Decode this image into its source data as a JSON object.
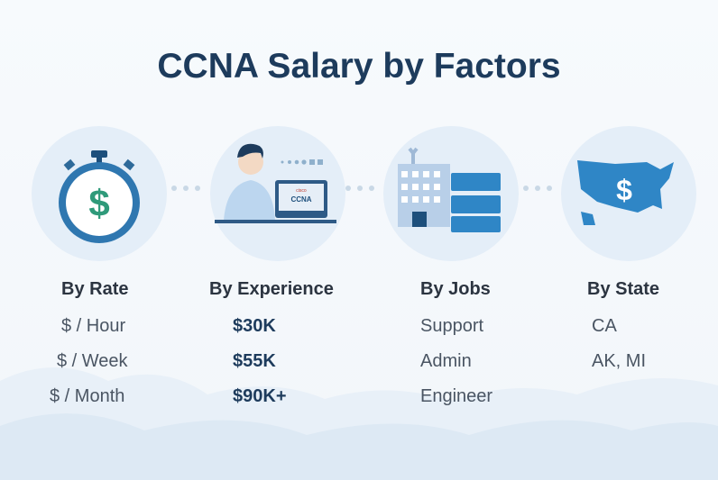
{
  "title": "CCNA Salary by Factors",
  "laptop_logo": {
    "top": "cisco",
    "bottom": "CCNA"
  },
  "columns": [
    {
      "heading": "By Rate",
      "icon": "stopwatch-dollar-icon",
      "items": [
        "$ / Hour",
        "$ / Week",
        "$ / Month"
      ]
    },
    {
      "heading": "By Experience",
      "icon": "person-laptop-icon",
      "items": [
        "$30K",
        "$55K",
        "$90K+"
      ]
    },
    {
      "heading": "By Jobs",
      "icon": "building-server-icon",
      "items": [
        "Support",
        "Admin",
        "Engineer"
      ]
    },
    {
      "heading": "By State",
      "icon": "usa-map-dollar-icon",
      "items": [
        "CA",
        "AK, MI"
      ]
    }
  ],
  "colors": {
    "title": "#1d3b5c",
    "accent": "#2f86c6",
    "dollar": "#2f9a7a"
  }
}
